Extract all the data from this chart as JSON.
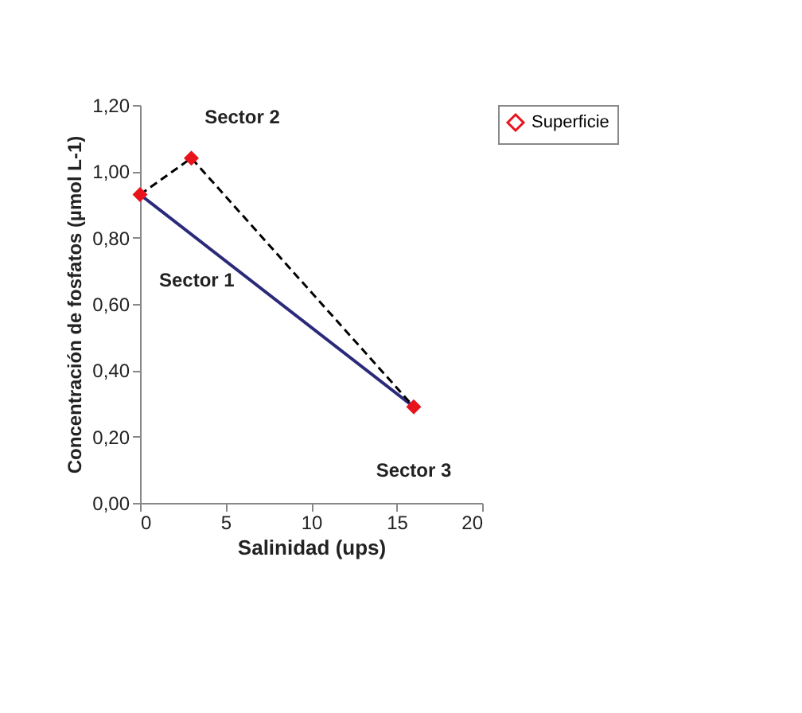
{
  "chart_data": {
    "type": "scatter",
    "xlabel": "Salinidad (ups)",
    "ylabel": "Concentración de fosfatos (µmol L-1)",
    "series": [
      {
        "name": "Superficie",
        "color": "#e8141c",
        "marker": "diamond",
        "x": [
          0,
          3,
          16
        ],
        "values": [
          0.93,
          1.04,
          0.29
        ]
      },
      {
        "type": "line",
        "color": "#000000",
        "line_style": "dashed",
        "x": [
          0,
          3,
          16
        ],
        "values": [
          0.93,
          1.04,
          0.29
        ]
      },
      {
        "type": "line",
        "color": "#2a2a7a",
        "line_style": "solid",
        "x": [
          0,
          16
        ],
        "values": [
          0.93,
          0.29
        ]
      }
    ],
    "annotations": [
      "Sector 1",
      {
        "text": "Sector 2",
        "x": 3,
        "y": 1.04
      },
      {
        "text": "Sector 3",
        "x": 16,
        "y": 0.29
      }
    ],
    "xlim": [
      0,
      20
    ],
    "xticks": [
      0,
      5,
      10,
      15,
      20
    ],
    "ylim": [
      0,
      1.2
    ],
    "yticks": [
      {
        "value": 0,
        "label": "0,00"
      },
      {
        "value": 0.2,
        "label": "0,20"
      },
      {
        "value": 0.4,
        "label": "0,40"
      },
      {
        "value": 0.6,
        "label": "0,60"
      },
      {
        "value": 0.8,
        "label": "0,80"
      },
      {
        "value": 1.0,
        "label": "1,00"
      },
      {
        "value": 1.2,
        "label": "1,20"
      }
    ],
    "grid": false,
    "legend": "right"
  }
}
